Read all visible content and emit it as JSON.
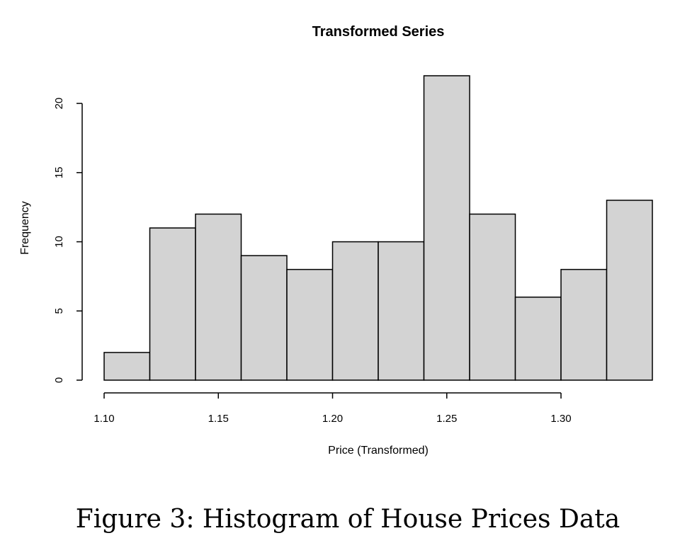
{
  "chart_data": {
    "type": "bar",
    "title": "Transformed Series",
    "xlabel": "Price (Transformed)",
    "ylabel": "Frequency",
    "bins": [
      {
        "x0": 1.1,
        "x1": 1.12,
        "count": 2
      },
      {
        "x0": 1.12,
        "x1": 1.14,
        "count": 11
      },
      {
        "x0": 1.14,
        "x1": 1.16,
        "count": 12
      },
      {
        "x0": 1.16,
        "x1": 1.18,
        "count": 9
      },
      {
        "x0": 1.18,
        "x1": 1.2,
        "count": 8
      },
      {
        "x0": 1.2,
        "x1": 1.22,
        "count": 10
      },
      {
        "x0": 1.22,
        "x1": 1.24,
        "count": 10
      },
      {
        "x0": 1.24,
        "x1": 1.26,
        "count": 22
      },
      {
        "x0": 1.26,
        "x1": 1.28,
        "count": 12
      },
      {
        "x0": 1.28,
        "x1": 1.3,
        "count": 6
      },
      {
        "x0": 1.3,
        "x1": 1.32,
        "count": 8
      },
      {
        "x0": 1.32,
        "x1": 1.34,
        "count": 13
      }
    ],
    "xticks": [
      1.1,
      1.15,
      1.2,
      1.25,
      1.3
    ],
    "xtick_labels": [
      "1.10",
      "1.15",
      "1.20",
      "1.25",
      "1.30"
    ],
    "yticks": [
      0,
      5,
      10,
      15,
      20
    ],
    "ytick_labels": [
      "0",
      "5",
      "10",
      "15",
      "20"
    ],
    "xlim": [
      1.1,
      1.34
    ],
    "ylim": [
      0,
      22
    ],
    "bar_color": "#d3d3d3",
    "edge_color": "#000000",
    "grid": false,
    "legend": "none"
  },
  "caption": "Figure 3: Histogram of House Prices Data"
}
